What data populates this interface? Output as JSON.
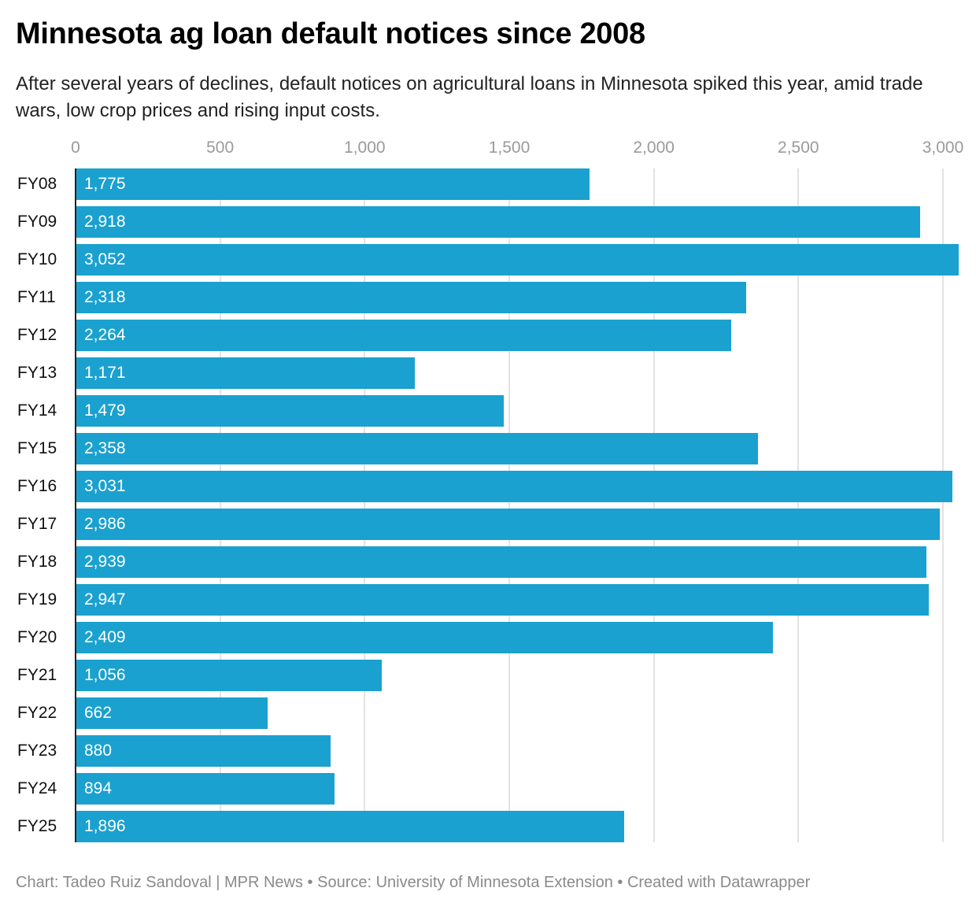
{
  "header": {
    "title": "Minnesota ag loan default notices since 2008",
    "subtitle": "After several years of declines, default notices on agricultural loans in Minnesota spiked this year, amid trade wars, low crop prices and rising input costs."
  },
  "axis": {
    "ticks": [
      "0",
      "500",
      "1,000",
      "1,500",
      "2,000",
      "2,500",
      "3,000"
    ]
  },
  "rows": [
    {
      "label": "FY08",
      "value": 1775,
      "display": "1,775"
    },
    {
      "label": "FY09",
      "value": 2918,
      "display": "2,918"
    },
    {
      "label": "FY10",
      "value": 3052,
      "display": "3,052"
    },
    {
      "label": "FY11",
      "value": 2318,
      "display": "2,318"
    },
    {
      "label": "FY12",
      "value": 2264,
      "display": "2,264"
    },
    {
      "label": "FY13",
      "value": 1171,
      "display": "1,171"
    },
    {
      "label": "FY14",
      "value": 1479,
      "display": "1,479"
    },
    {
      "label": "FY15",
      "value": 2358,
      "display": "2,358"
    },
    {
      "label": "FY16",
      "value": 3031,
      "display": "3,031"
    },
    {
      "label": "FY17",
      "value": 2986,
      "display": "2,986"
    },
    {
      "label": "FY18",
      "value": 2939,
      "display": "2,939"
    },
    {
      "label": "FY19",
      "value": 2947,
      "display": "2,947"
    },
    {
      "label": "FY20",
      "value": 2409,
      "display": "2,409"
    },
    {
      "label": "FY21",
      "value": 1056,
      "display": "1,056"
    },
    {
      "label": "FY22",
      "value": 662,
      "display": "662"
    },
    {
      "label": "FY23",
      "value": 880,
      "display": "880"
    },
    {
      "label": "FY24",
      "value": 894,
      "display": "894"
    },
    {
      "label": "FY25",
      "value": 1896,
      "display": "1,896"
    }
  ],
  "colors": {
    "bar": "#1aa1cf",
    "grid": "#e3e3e3",
    "tick": "#9a9a9a"
  },
  "footer": {
    "credit": "Chart: Tadeo Ruiz Sandoval | MPR News • Source: University of Minnesota Extension • Created with Datawrapper"
  },
  "chart_data": {
    "type": "bar",
    "orientation": "horizontal",
    "title": "Minnesota ag loan default notices since 2008",
    "subtitle": "After several years of declines, default notices on agricultural loans in Minnesota spiked this year, amid trade wars, low crop prices and rising input costs.",
    "categories": [
      "FY08",
      "FY09",
      "FY10",
      "FY11",
      "FY12",
      "FY13",
      "FY14",
      "FY15",
      "FY16",
      "FY17",
      "FY18",
      "FY19",
      "FY20",
      "FY21",
      "FY22",
      "FY23",
      "FY24",
      "FY25"
    ],
    "values": [
      1775,
      2918,
      3052,
      2318,
      2264,
      1171,
      1479,
      2358,
      3031,
      2986,
      2939,
      2947,
      2409,
      1056,
      662,
      880,
      894,
      1896
    ],
    "xlabel": "",
    "ylabel": "",
    "xlim": [
      0,
      3052
    ],
    "xticks": [
      0,
      500,
      1000,
      1500,
      2000,
      2500,
      3000
    ],
    "grid": true,
    "legend": null,
    "data_labels": true,
    "source": "Chart: Tadeo Ruiz Sandoval | MPR News • Source: University of Minnesota Extension • Created with Datawrapper"
  }
}
